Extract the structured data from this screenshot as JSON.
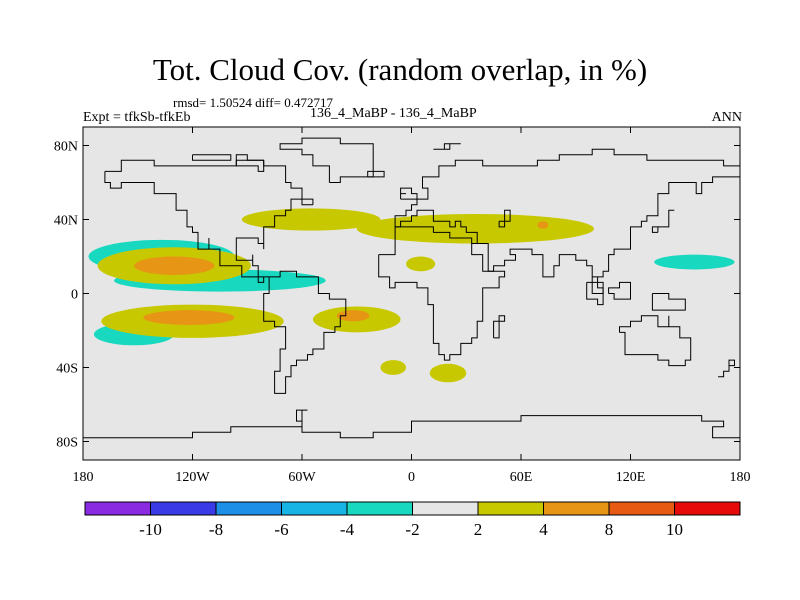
{
  "header": {
    "title": "Tot. Cloud Cov. (random overlap, in %)",
    "stats": "rmsd= 1.50524 diff= 0.472717",
    "left_label": "Expt = tfkSb-tfkEb",
    "center_label": "136_4_MaBP - 136_4_MaBP",
    "right_label": "ANN"
  },
  "colors": {
    "background": "#e6e6e6",
    "coast": "#000000",
    "frame": "#000000"
  },
  "chart_data": {
    "type": "heatmap",
    "title": "Tot. Cloud Cov. (random overlap, in %)",
    "subtitle": "136_4_MaBP - 136_4_MaBP",
    "xlabel": "",
    "ylabel": "",
    "xlim": [
      -180,
      180
    ],
    "ylim": [
      -90,
      90
    ],
    "x_ticks": [
      {
        "value": -180,
        "label": "180"
      },
      {
        "value": -120,
        "label": "120W"
      },
      {
        "value": -60,
        "label": "60W"
      },
      {
        "value": 0,
        "label": "0"
      },
      {
        "value": 60,
        "label": "60E"
      },
      {
        "value": 120,
        "label": "120E"
      },
      {
        "value": 180,
        "label": "180"
      }
    ],
    "y_ticks": [
      {
        "value": 80,
        "label": "80N"
      },
      {
        "value": 40,
        "label": "40N"
      },
      {
        "value": 0,
        "label": "0"
      },
      {
        "value": -40,
        "label": "40S"
      },
      {
        "value": -80,
        "label": "80S"
      }
    ],
    "colorbar": {
      "labels": [
        "-10",
        "-8",
        "-6",
        "-4",
        "-2",
        "2",
        "4",
        "8",
        "10"
      ],
      "colors": [
        "#8a2be2",
        "#3a3ae6",
        "#1e8fe6",
        "#18b4e6",
        "#18d8c0",
        "#e6e6e6",
        "#c8c800",
        "#e69614",
        "#e65a14",
        "#e60a0a"
      ]
    },
    "regions": [
      {
        "level": "-4 to -2",
        "color": "#18d8c0",
        "cx": -137,
        "cy": 20,
        "rx": 40,
        "ry": 9
      },
      {
        "level": "-4 to -2",
        "color": "#18d8c0",
        "cx": -105,
        "cy": 7,
        "rx": 58,
        "ry": 6
      },
      {
        "level": "-4 to -2",
        "color": "#18d8c0",
        "cx": -152,
        "cy": -22,
        "rx": 22,
        "ry": 6
      },
      {
        "level": "-4 to -2",
        "color": "#18d8c0",
        "cx": 155,
        "cy": 17,
        "rx": 22,
        "ry": 4
      },
      {
        "level": "2 to 4",
        "color": "#c8c800",
        "cx": -130,
        "cy": 15,
        "rx": 42,
        "ry": 10
      },
      {
        "level": "2 to 4",
        "color": "#c8c800",
        "cx": -120,
        "cy": -15,
        "rx": 50,
        "ry": 9
      },
      {
        "level": "2 to 4",
        "color": "#c8c800",
        "cx": -30,
        "cy": -14,
        "rx": 24,
        "ry": 7
      },
      {
        "level": "2 to 4",
        "color": "#c8c800",
        "cx": -55,
        "cy": 40,
        "rx": 38,
        "ry": 6
      },
      {
        "level": "2 to 4",
        "color": "#c8c800",
        "cx": 35,
        "cy": 35,
        "rx": 65,
        "ry": 8
      },
      {
        "level": "2 to 4",
        "color": "#c8c800",
        "cx": 5,
        "cy": 16,
        "rx": 8,
        "ry": 4
      },
      {
        "level": "2 to 4",
        "color": "#c8c800",
        "cx": 20,
        "cy": -43,
        "rx": 10,
        "ry": 5
      },
      {
        "level": "2 to 4",
        "color": "#c8c800",
        "cx": -10,
        "cy": -40,
        "rx": 7,
        "ry": 4
      },
      {
        "level": "4 to 8",
        "color": "#e69614",
        "cx": -130,
        "cy": 15,
        "rx": 22,
        "ry": 5
      },
      {
        "level": "4 to 8",
        "color": "#e69614",
        "cx": -122,
        "cy": -13,
        "rx": 25,
        "ry": 4
      },
      {
        "level": "4 to 8",
        "color": "#e69614",
        "cx": -32,
        "cy": -12,
        "rx": 9,
        "ry": 3
      },
      {
        "level": "4 to 8",
        "color": "#e69614",
        "cx": 72,
        "cy": 37,
        "rx": 3,
        "ry": 2
      }
    ]
  }
}
